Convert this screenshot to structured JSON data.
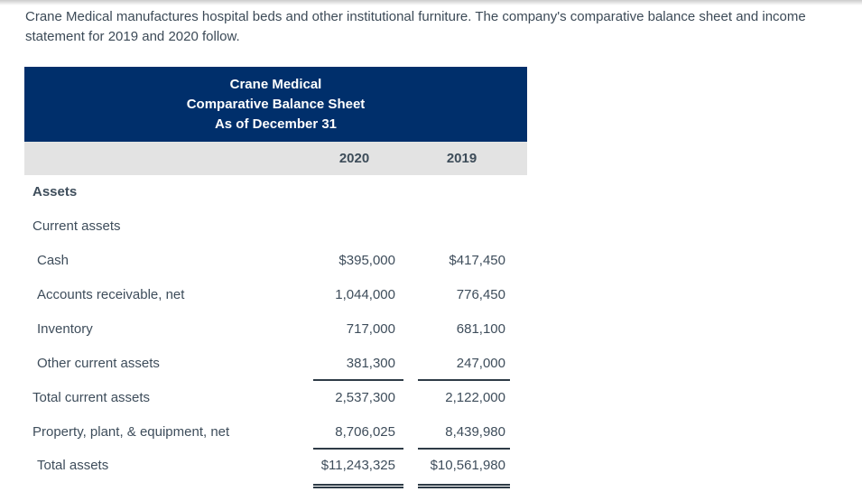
{
  "intro_text": "Crane Medical manufactures hospital beds and other institutional furniture. The company's comparative balance sheet and income statement for 2019 and 2020 follow.",
  "table": {
    "title_lines": [
      "Crane Medical",
      "Comparative Balance Sheet",
      "As of December 31"
    ],
    "columns": [
      "2020",
      "2019"
    ],
    "rows": [
      {
        "label": "Assets",
        "v2020": "",
        "v2019": "",
        "indent": 1,
        "style": "bold",
        "rule": "none"
      },
      {
        "label": "Current assets",
        "v2020": "",
        "v2019": "",
        "indent": 1,
        "style": "normal",
        "rule": "none"
      },
      {
        "label": "Cash",
        "v2020": "$395,000",
        "v2019": "$417,450",
        "indent": 2,
        "style": "normal",
        "rule": "none"
      },
      {
        "label": "Accounts receivable, net",
        "v2020": "1,044,000",
        "v2019": "776,450",
        "indent": 2,
        "style": "normal",
        "rule": "none"
      },
      {
        "label": "Inventory",
        "v2020": "717,000",
        "v2019": "681,100",
        "indent": 2,
        "style": "normal",
        "rule": "none"
      },
      {
        "label": "Other current assets",
        "v2020": "381,300",
        "v2019": "247,000",
        "indent": 2,
        "style": "normal",
        "rule": "single"
      },
      {
        "label": "Total current assets",
        "v2020": "2,537,300",
        "v2019": "2,122,000",
        "indent": 1,
        "style": "normal",
        "rule": "none"
      },
      {
        "label": "Property, plant, & equipment, net",
        "v2020": "8,706,025",
        "v2019": "8,439,980",
        "indent": 1,
        "style": "normal",
        "rule": "single"
      },
      {
        "label": "Total assets",
        "v2020": "$11,243,325",
        "v2019": "$10,561,980",
        "indent": 2,
        "style": "normal",
        "rule": "double"
      }
    ]
  },
  "colors": {
    "header_navy": "#002f6b",
    "column_header_gray": "#e3e3e3",
    "body_text": "#3e4d5b",
    "rule_line": "#2e3b46"
  }
}
